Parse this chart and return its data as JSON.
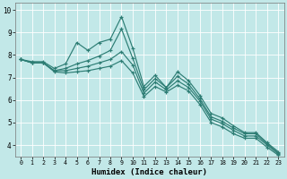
{
  "xlabel": "Humidex (Indice chaleur)",
  "bg_color": "#c2e8e8",
  "grid_color": "#ffffff",
  "line_color": "#2d7d74",
  "xlim_min": -0.5,
  "xlim_max": 23.5,
  "ylim_min": 3.5,
  "ylim_max": 10.3,
  "xticks": [
    0,
    1,
    2,
    3,
    4,
    5,
    6,
    7,
    8,
    9,
    10,
    11,
    12,
    13,
    14,
    15,
    16,
    17,
    18,
    19,
    20,
    21,
    22,
    23
  ],
  "yticks": [
    4,
    5,
    6,
    7,
    8,
    9,
    10
  ],
  "series": [
    [
      7.8,
      7.7,
      7.7,
      7.4,
      7.6,
      8.55,
      8.2,
      8.55,
      8.7,
      9.7,
      8.3,
      6.6,
      7.1,
      6.55,
      7.25,
      6.85,
      6.2,
      5.4,
      5.2,
      4.85,
      4.55,
      4.55,
      4.1,
      3.7
    ],
    [
      7.8,
      7.65,
      7.65,
      7.3,
      7.4,
      7.6,
      7.75,
      7.95,
      8.2,
      9.15,
      7.85,
      6.45,
      6.95,
      6.55,
      7.05,
      6.7,
      6.05,
      5.25,
      5.05,
      4.75,
      4.5,
      4.5,
      4.05,
      3.65
    ],
    [
      7.8,
      7.65,
      7.65,
      7.3,
      7.3,
      7.4,
      7.5,
      7.65,
      7.8,
      8.15,
      7.55,
      6.3,
      6.8,
      6.45,
      6.85,
      6.55,
      5.95,
      5.15,
      4.95,
      4.65,
      4.4,
      4.4,
      4.0,
      3.6
    ],
    [
      7.8,
      7.65,
      7.65,
      7.25,
      7.2,
      7.25,
      7.3,
      7.4,
      7.5,
      7.75,
      7.2,
      6.15,
      6.6,
      6.35,
      6.65,
      6.4,
      5.8,
      5.0,
      4.8,
      4.5,
      4.3,
      4.3,
      3.9,
      3.55
    ]
  ]
}
